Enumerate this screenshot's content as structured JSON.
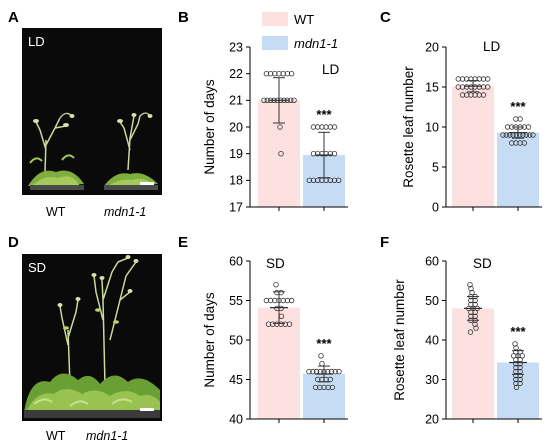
{
  "panel_labels": {
    "A": "A",
    "B": "B",
    "C": "C",
    "D": "D",
    "E": "E",
    "F": "F"
  },
  "photos": {
    "top": {
      "condition": "LD",
      "captions": [
        "WT",
        "mdn1-1"
      ]
    },
    "bottom": {
      "condition": "SD",
      "captions": [
        "WT",
        "mdn1-1"
      ]
    }
  },
  "legend": {
    "wt": "WT",
    "mutant": "mdn1-1"
  },
  "colors": {
    "wt_fill": "#fde0e0",
    "mutant_fill": "#c6dcf5",
    "point": "#333333",
    "photo_bg": "#0a0a0a"
  },
  "chart_data": [
    {
      "id": "B",
      "type": "bar",
      "categories": [
        "WT",
        "mdn1-1"
      ],
      "condition": "LD",
      "ylabel": "Number of days",
      "ylim": [
        17,
        23
      ],
      "yticks": [
        17,
        18,
        19,
        20,
        21,
        22,
        23
      ],
      "means": [
        21.0,
        18.95
      ],
      "sd": [
        0.85,
        0.85
      ],
      "significance": "***",
      "points": [
        [
          22,
          22,
          22,
          22,
          22,
          22,
          22,
          21,
          21,
          21,
          21,
          21,
          21,
          21,
          21,
          21,
          21,
          20,
          19
        ],
        [
          20,
          20,
          20,
          20,
          20,
          20,
          19,
          19,
          19,
          19,
          19,
          19,
          18,
          18,
          18,
          18,
          18,
          18,
          18,
          18
        ]
      ]
    },
    {
      "id": "C",
      "type": "bar",
      "categories": [
        "WT",
        "mdn1-1"
      ],
      "condition": "LD",
      "ylabel": "Rosette leaf number",
      "ylim": [
        0,
        20
      ],
      "yticks": [
        0,
        5,
        10,
        15,
        20
      ],
      "means": [
        15.1,
        9.3
      ],
      "sd": [
        0.7,
        0.7
      ],
      "significance": "***",
      "points": [
        [
          16,
          16,
          16,
          16,
          16,
          16,
          16,
          16,
          15,
          15,
          15,
          15,
          15,
          15,
          15,
          15,
          14,
          14,
          14,
          14,
          14,
          14
        ],
        [
          11,
          11,
          10,
          10,
          10,
          10,
          10,
          10,
          9,
          9,
          9,
          9,
          9,
          9,
          9,
          9,
          9,
          9,
          8,
          8,
          8,
          8
        ]
      ]
    },
    {
      "id": "E",
      "type": "bar",
      "categories": [
        "WT",
        "mdn1-1"
      ],
      "condition": "SD",
      "ylabel": "Number of days",
      "ylim": [
        40,
        60
      ],
      "yticks": [
        40,
        45,
        50,
        55,
        60
      ],
      "means": [
        54.1,
        45.7
      ],
      "sd": [
        2.0,
        1.0
      ],
      "significance": "***",
      "points": [
        [
          57,
          56,
          56,
          55,
          55,
          55,
          55,
          55,
          55,
          55,
          54,
          54,
          53,
          52,
          52,
          52,
          52,
          52,
          52
        ],
        [
          48,
          47,
          46,
          46,
          46,
          46,
          46,
          46,
          46,
          46,
          46,
          45,
          45,
          45,
          45,
          44,
          44,
          44,
          44,
          44
        ]
      ]
    },
    {
      "id": "F",
      "type": "bar",
      "categories": [
        "WT",
        "mdn1-1"
      ],
      "condition": "SD",
      "ylabel": "Rosette leaf number",
      "ylim": [
        20,
        60
      ],
      "yticks": [
        20,
        30,
        40,
        50,
        60
      ],
      "means": [
        48.0,
        34.3
      ],
      "sd": [
        3.0,
        3.0
      ],
      "significance": "***",
      "points": [
        [
          54,
          53,
          52,
          51,
          51,
          50,
          50,
          49,
          49,
          48,
          48,
          48,
          47,
          47,
          46,
          46,
          45,
          45,
          44,
          43,
          42
        ],
        [
          39,
          38,
          37,
          37,
          36,
          36,
          36,
          35,
          35,
          34,
          34,
          33,
          33,
          32,
          32,
          31,
          31,
          30,
          30,
          29,
          29,
          28
        ]
      ]
    }
  ]
}
